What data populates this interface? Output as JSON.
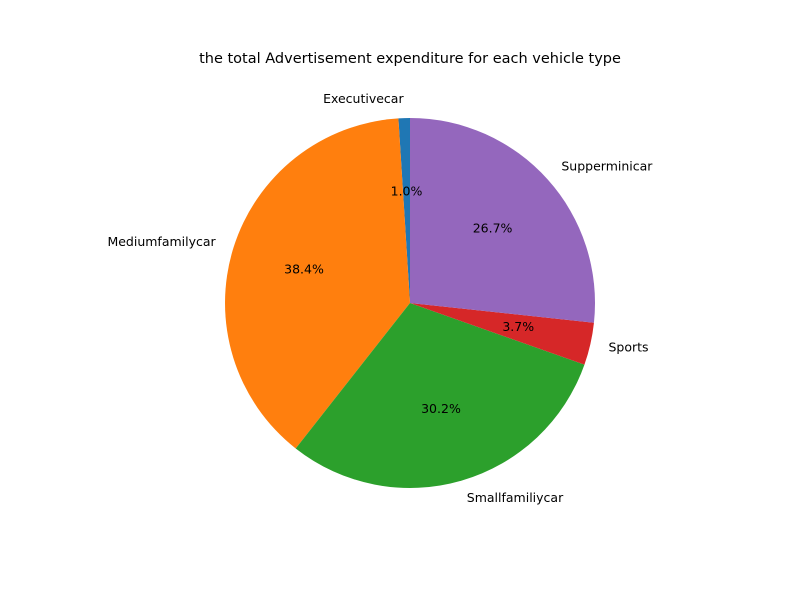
{
  "chart_data": {
    "type": "pie",
    "title": "the total Advertisement expenditure for each vehicle type",
    "categories": [
      "Executivecar",
      "Mediumfamilycar",
      "Smallfamiliycar",
      "Sports",
      "Supperminicar"
    ],
    "values": [
      1.0,
      38.4,
      30.2,
      3.7,
      26.7
    ],
    "value_labels": [
      "1.0%",
      "38.4%",
      "30.2%",
      "3.7%",
      "26.7%"
    ],
    "colors": [
      "#1f77b4",
      "#ff7f0e",
      "#2ca02c",
      "#d62728",
      "#9467bd"
    ],
    "start_angle_deg": 90,
    "direction": "counterclockwise"
  }
}
